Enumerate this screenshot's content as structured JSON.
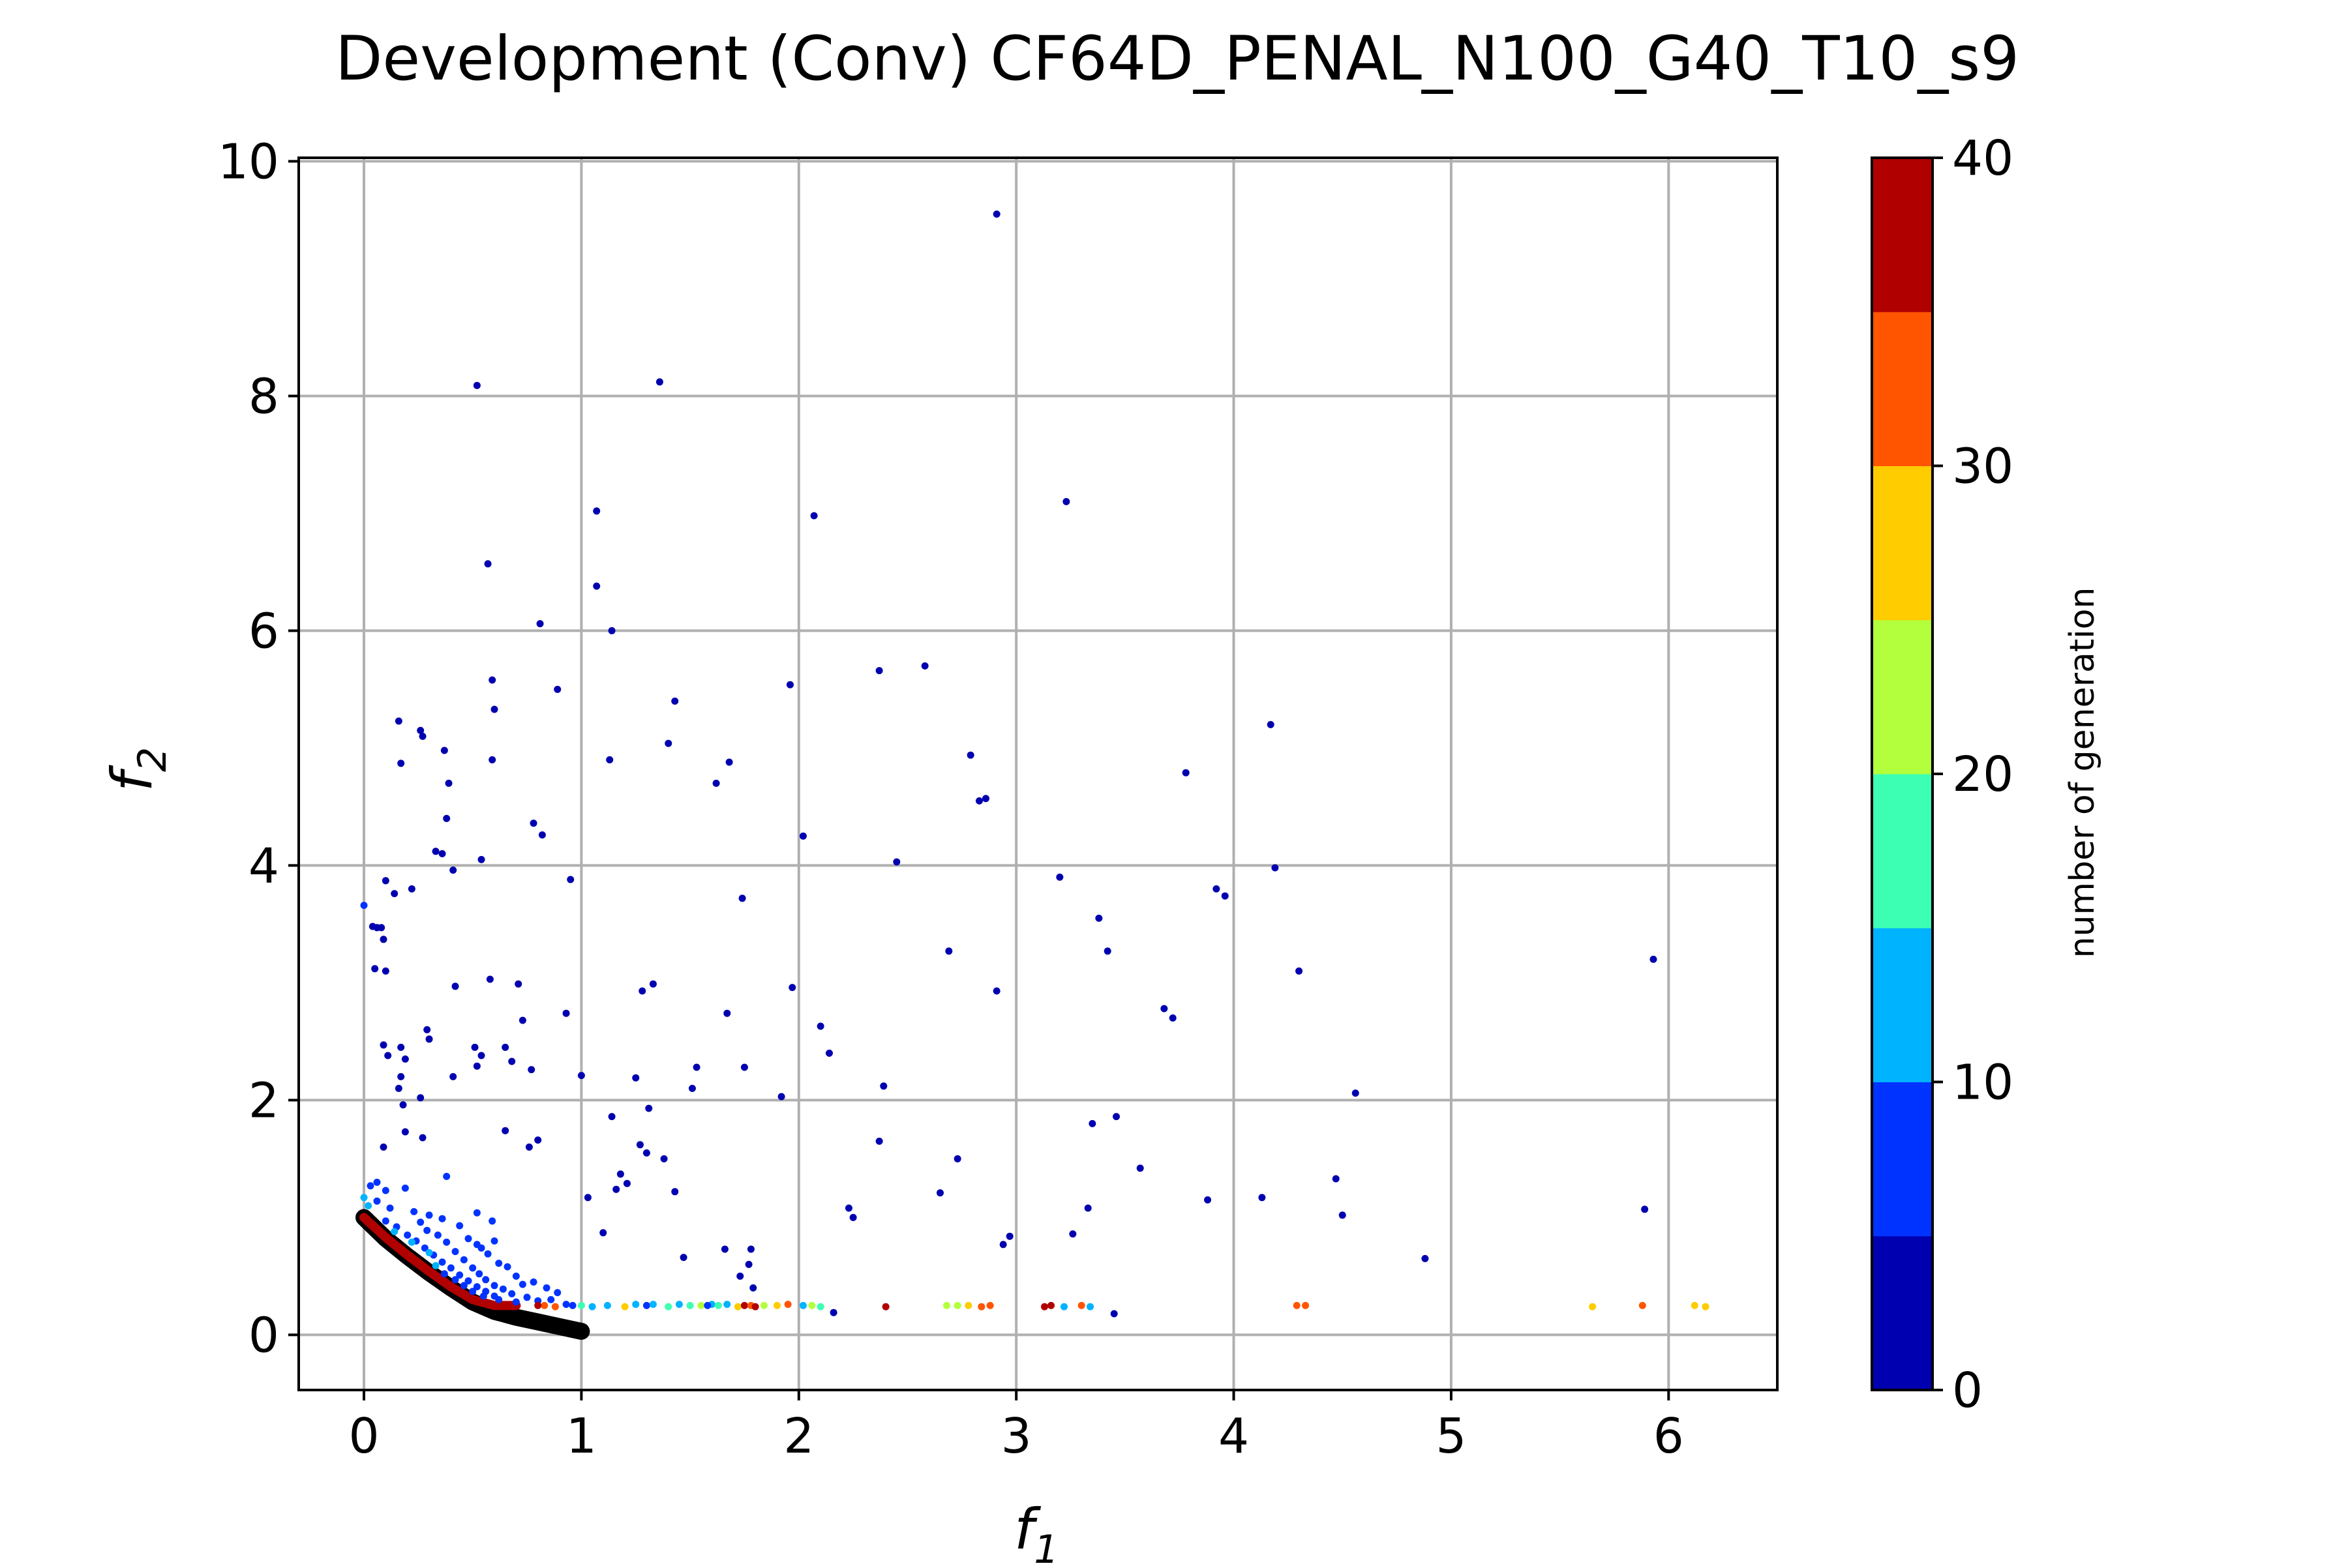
{
  "chart_data": {
    "type": "scatter",
    "title": "Development (Conv) CF64D_PENAL_N100_G40_T10_s9",
    "xlabel": {
      "base": "f",
      "sub": "1"
    },
    "ylabel": {
      "base": "f",
      "sub": "2"
    },
    "xlim": [
      -0.3,
      6.5
    ],
    "ylim": [
      -0.47,
      10.03
    ],
    "xticks": [
      0,
      1,
      2,
      3,
      4,
      5,
      6
    ],
    "yticks": [
      0,
      2,
      4,
      6,
      8,
      10
    ],
    "xtick_labels": [
      "0",
      "1",
      "2",
      "3",
      "4",
      "5",
      "6"
    ],
    "ytick_labels": [
      "0",
      "2",
      "4",
      "6",
      "8",
      "10"
    ],
    "grid": true,
    "colorbar": {
      "label": "number of generation",
      "range": [
        0,
        40
      ],
      "ticks": [
        0,
        10,
        20,
        30,
        40
      ],
      "tick_labels": [
        "0",
        "10",
        "20",
        "30",
        "40"
      ],
      "colors": [
        "#0000b0",
        "#0033ff",
        "#00b3ff",
        "#3dffb3",
        "#b3ff3d",
        "#ffcc00",
        "#ff5500",
        "#b00000"
      ]
    },
    "pareto_front": {
      "color": "#000000",
      "points": [
        [
          0.0,
          1.0
        ],
        [
          0.1,
          0.82
        ],
        [
          0.2,
          0.67
        ],
        [
          0.3,
          0.53
        ],
        [
          0.4,
          0.4
        ],
        [
          0.5,
          0.28
        ],
        [
          0.6,
          0.2
        ],
        [
          0.7,
          0.15
        ],
        [
          0.8,
          0.11
        ],
        [
          0.9,
          0.07
        ],
        [
          1.0,
          0.03
        ]
      ]
    },
    "final_front": {
      "generation": 40,
      "points": [
        [
          0.0,
          1.0
        ],
        [
          0.1,
          0.83
        ],
        [
          0.2,
          0.68
        ],
        [
          0.3,
          0.54
        ],
        [
          0.4,
          0.41
        ],
        [
          0.5,
          0.3
        ],
        [
          0.6,
          0.25
        ],
        [
          0.7,
          0.25
        ]
      ]
    },
    "points": [
      [
        2.91,
        9.55,
        0
      ],
      [
        0.52,
        8.09,
        0
      ],
      [
        1.36,
        8.12,
        0
      ],
      [
        1.07,
        7.02,
        0
      ],
      [
        2.07,
        6.98,
        0
      ],
      [
        3.23,
        7.1,
        0
      ],
      [
        0.57,
        6.57,
        0
      ],
      [
        1.07,
        6.38,
        0
      ],
      [
        0.81,
        6.06,
        0
      ],
      [
        1.14,
        6.0,
        0
      ],
      [
        2.37,
        5.66,
        0
      ],
      [
        2.58,
        5.7,
        0
      ],
      [
        0.59,
        5.58,
        0
      ],
      [
        0.6,
        5.33,
        0
      ],
      [
        0.89,
        5.5,
        0
      ],
      [
        1.43,
        5.4,
        0
      ],
      [
        1.96,
        5.54,
        0
      ],
      [
        4.17,
        5.2,
        0
      ],
      [
        0.16,
        5.23,
        0
      ],
      [
        0.26,
        5.15,
        0
      ],
      [
        0.27,
        5.1,
        0
      ],
      [
        0.37,
        4.98,
        0
      ],
      [
        0.59,
        4.9,
        0
      ],
      [
        1.13,
        4.9,
        0
      ],
      [
        1.4,
        5.04,
        0
      ],
      [
        1.68,
        4.88,
        0
      ],
      [
        2.79,
        4.94,
        0
      ],
      [
        0.17,
        4.87,
        0
      ],
      [
        0.39,
        4.7,
        0
      ],
      [
        1.62,
        4.7,
        0
      ],
      [
        2.83,
        4.55,
        0
      ],
      [
        2.86,
        4.57,
        0
      ],
      [
        3.78,
        4.79,
        0
      ],
      [
        0.38,
        4.4,
        0
      ],
      [
        0.78,
        4.36,
        0
      ],
      [
        0.82,
        4.26,
        0
      ],
      [
        2.02,
        4.25,
        0
      ],
      [
        0.33,
        4.12,
        0
      ],
      [
        0.36,
        4.1,
        0
      ],
      [
        0.54,
        4.05,
        0
      ],
      [
        2.45,
        4.03,
        0
      ],
      [
        4.19,
        3.98,
        0
      ],
      [
        0.41,
        3.96,
        0
      ],
      [
        0.95,
        3.88,
        0
      ],
      [
        3.2,
        3.9,
        0
      ],
      [
        3.92,
        3.8,
        0
      ],
      [
        3.96,
        3.74,
        0
      ],
      [
        1.74,
        3.72,
        0
      ],
      [
        3.38,
        3.55,
        0
      ],
      [
        3.42,
        3.27,
        0
      ],
      [
        2.69,
        3.27,
        0
      ],
      [
        4.3,
        3.1,
        0
      ],
      [
        5.93,
        3.2,
        0
      ],
      [
        0.58,
        3.03,
        0
      ],
      [
        0.71,
        2.99,
        0
      ],
      [
        0.42,
        2.97,
        0
      ],
      [
        1.28,
        2.93,
        0
      ],
      [
        1.33,
        2.99,
        0
      ],
      [
        1.97,
        2.96,
        0
      ],
      [
        2.91,
        2.93,
        0
      ],
      [
        3.68,
        2.78,
        0
      ],
      [
        3.72,
        2.7,
        0
      ],
      [
        1.67,
        2.74,
        0
      ],
      [
        0.93,
        2.74,
        0
      ],
      [
        0.73,
        2.68,
        0
      ],
      [
        2.1,
        2.63,
        0
      ],
      [
        0.29,
        2.6,
        0
      ],
      [
        0.3,
        2.52,
        0
      ],
      [
        0.51,
        2.45,
        0
      ],
      [
        0.65,
        2.45,
        0
      ],
      [
        0.54,
        2.38,
        0
      ],
      [
        0.68,
        2.33,
        0
      ],
      [
        0.52,
        2.29,
        0
      ],
      [
        2.14,
        2.4,
        0
      ],
      [
        1.53,
        2.28,
        0
      ],
      [
        1.75,
        2.28,
        0
      ],
      [
        0.77,
        2.26,
        0
      ],
      [
        0.41,
        2.2,
        0
      ],
      [
        1.0,
        2.21,
        0
      ],
      [
        1.25,
        2.19,
        0
      ],
      [
        2.39,
        2.12,
        0
      ],
      [
        1.51,
        2.1,
        0
      ],
      [
        4.56,
        2.06,
        0
      ],
      [
        1.92,
        2.03,
        0
      ],
      [
        1.14,
        1.86,
        0
      ],
      [
        1.31,
        1.93,
        0
      ],
      [
        3.35,
        1.8,
        0
      ],
      [
        3.46,
        1.86,
        0
      ],
      [
        0.65,
        1.74,
        0
      ],
      [
        0.76,
        1.6,
        0
      ],
      [
        0.8,
        1.66,
        0
      ],
      [
        1.27,
        1.62,
        0
      ],
      [
        1.3,
        1.55,
        0
      ],
      [
        2.37,
        1.65,
        0
      ],
      [
        2.73,
        1.5,
        0
      ],
      [
        1.18,
        1.37,
        0
      ],
      [
        1.21,
        1.29,
        0
      ],
      [
        1.38,
        1.5,
        0
      ],
      [
        3.57,
        1.42,
        0
      ],
      [
        1.03,
        1.17,
        0
      ],
      [
        1.16,
        1.24,
        0
      ],
      [
        1.43,
        1.22,
        0
      ],
      [
        2.65,
        1.21,
        0
      ],
      [
        4.47,
        1.33,
        0
      ],
      [
        3.88,
        1.15,
        0
      ],
      [
        4.13,
        1.17,
        0
      ],
      [
        2.23,
        1.08,
        0
      ],
      [
        2.25,
        1.0,
        0
      ],
      [
        3.33,
        1.08,
        0
      ],
      [
        4.5,
        1.02,
        0
      ],
      [
        5.89,
        1.07,
        0
      ],
      [
        1.1,
        0.87,
        0
      ],
      [
        3.26,
        0.86,
        0
      ],
      [
        2.97,
        0.84,
        0
      ],
      [
        2.94,
        0.77,
        0
      ],
      [
        1.47,
        0.66,
        0
      ],
      [
        4.88,
        0.65,
        0
      ],
      [
        1.66,
        0.73,
        0
      ],
      [
        1.78,
        0.73,
        0
      ],
      [
        1.73,
        0.5,
        0
      ],
      [
        1.77,
        0.6,
        0
      ],
      [
        1.79,
        0.4,
        0
      ],
      [
        2.16,
        0.19,
        0
      ],
      [
        3.45,
        0.18,
        0
      ],
      [
        0.0,
        3.66,
        7
      ],
      [
        0.06,
        3.47,
        0
      ],
      [
        0.08,
        3.47,
        0
      ],
      [
        0.09,
        3.37,
        0
      ],
      [
        0.04,
        3.48,
        0
      ],
      [
        0.05,
        3.12,
        0
      ],
      [
        0.1,
        3.1,
        0
      ],
      [
        0.1,
        3.87,
        0
      ],
      [
        0.14,
        3.76,
        0
      ],
      [
        0.22,
        3.8,
        0
      ],
      [
        0.09,
        2.47,
        0
      ],
      [
        0.11,
        2.38,
        0
      ],
      [
        0.17,
        2.45,
        0
      ],
      [
        0.19,
        2.35,
        0
      ],
      [
        0.17,
        2.2,
        0
      ],
      [
        0.16,
        2.1,
        0
      ],
      [
        0.26,
        2.02,
        0
      ],
      [
        0.18,
        1.96,
        0
      ],
      [
        0.27,
        1.68,
        0
      ],
      [
        0.09,
        1.6,
        0
      ],
      [
        0.19,
        1.73,
        0
      ],
      [
        0.03,
        1.27,
        7
      ],
      [
        0.06,
        1.3,
        7
      ],
      [
        0.1,
        1.23,
        7
      ],
      [
        0.19,
        1.25,
        7
      ],
      [
        0.38,
        1.35,
        7
      ],
      [
        0.0,
        1.17,
        12
      ],
      [
        0.02,
        1.1,
        12
      ],
      [
        0.06,
        1.14,
        7
      ],
      [
        0.12,
        1.08,
        7
      ],
      [
        0.23,
        1.05,
        7
      ],
      [
        0.3,
        1.02,
        7
      ],
      [
        0.36,
        0.99,
        7
      ],
      [
        0.52,
        1.04,
        7
      ],
      [
        0.59,
        0.97,
        7
      ],
      [
        0.6,
        0.8,
        7
      ],
      [
        0.44,
        0.93,
        7
      ],
      [
        0.48,
        0.82,
        7
      ],
      [
        0.52,
        0.77,
        7
      ],
      [
        0.54,
        0.74,
        7
      ],
      [
        0.57,
        0.69,
        7
      ],
      [
        0.62,
        0.61,
        7
      ],
      [
        0.66,
        0.58,
        7
      ],
      [
        0.7,
        0.5,
        7
      ],
      [
        0.73,
        0.43,
        7
      ],
      [
        0.26,
        0.96,
        7
      ],
      [
        0.29,
        0.89,
        7
      ],
      [
        0.34,
        0.85,
        7
      ],
      [
        0.38,
        0.79,
        7
      ],
      [
        0.42,
        0.71,
        7
      ],
      [
        0.46,
        0.64,
        7
      ],
      [
        0.5,
        0.57,
        7
      ],
      [
        0.53,
        0.52,
        7
      ],
      [
        0.56,
        0.47,
        7
      ],
      [
        0.6,
        0.42,
        7
      ],
      [
        0.64,
        0.39,
        7
      ],
      [
        0.68,
        0.35,
        7
      ],
      [
        0.75,
        0.32,
        7
      ],
      [
        0.8,
        0.29,
        7
      ],
      [
        0.86,
        0.3,
        7
      ],
      [
        0.89,
        0.36,
        7
      ],
      [
        0.84,
        0.4,
        7
      ],
      [
        0.78,
        0.45,
        7
      ],
      [
        0.15,
        0.92,
        7
      ],
      [
        0.2,
        0.85,
        7
      ],
      [
        0.24,
        0.8,
        7
      ],
      [
        0.28,
        0.74,
        7
      ],
      [
        0.32,
        0.68,
        7
      ],
      [
        0.36,
        0.62,
        7
      ],
      [
        0.4,
        0.57,
        7
      ],
      [
        0.44,
        0.51,
        7
      ],
      [
        0.48,
        0.46,
        7
      ],
      [
        0.52,
        0.41,
        7
      ],
      [
        0.56,
        0.37,
        7
      ],
      [
        0.6,
        0.33,
        7
      ],
      [
        0.1,
        0.97,
        7
      ],
      [
        0.14,
        0.88,
        12
      ],
      [
        0.22,
        0.79,
        12
      ],
      [
        0.3,
        0.7,
        12
      ],
      [
        0.33,
        0.59,
        12
      ],
      [
        0.37,
        0.52,
        7
      ],
      [
        0.42,
        0.47,
        7
      ],
      [
        0.46,
        0.42,
        7
      ],
      [
        0.5,
        0.37,
        7
      ],
      [
        0.55,
        0.33,
        7
      ],
      [
        0.62,
        0.3,
        7
      ],
      [
        0.7,
        0.28,
        7
      ],
      [
        0.93,
        0.26,
        7
      ],
      [
        0.96,
        0.25,
        7
      ],
      [
        1.05,
        0.24,
        12
      ],
      [
        1.12,
        0.25,
        12
      ],
      [
        1.25,
        0.26,
        12
      ],
      [
        1.3,
        0.25,
        7
      ],
      [
        1.33,
        0.26,
        12
      ],
      [
        1.4,
        0.24,
        17
      ],
      [
        1.55,
        0.25,
        22
      ],
      [
        1.6,
        0.26,
        12
      ],
      [
        1.58,
        0.25,
        7
      ],
      [
        1.63,
        0.25,
        17
      ],
      [
        1.67,
        0.26,
        12
      ],
      [
        1.72,
        0.24,
        27
      ],
      [
        1.75,
        0.25,
        37
      ],
      [
        1.78,
        0.25,
        32
      ],
      [
        1.8,
        0.24,
        37
      ],
      [
        1.84,
        0.25,
        22
      ],
      [
        1.9,
        0.25,
        27
      ],
      [
        1.95,
        0.26,
        32
      ],
      [
        2.02,
        0.25,
        12
      ],
      [
        2.06,
        0.25,
        22
      ],
      [
        2.1,
        0.24,
        17
      ],
      [
        1.2,
        0.24,
        27
      ],
      [
        1.0,
        0.25,
        17
      ],
      [
        2.4,
        0.24,
        37
      ],
      [
        2.68,
        0.25,
        22
      ],
      [
        2.73,
        0.25,
        22
      ],
      [
        2.78,
        0.25,
        27
      ],
      [
        2.84,
        0.24,
        32
      ],
      [
        2.88,
        0.25,
        32
      ],
      [
        3.13,
        0.24,
        37
      ],
      [
        3.16,
        0.25,
        37
      ],
      [
        3.22,
        0.24,
        12
      ],
      [
        3.3,
        0.25,
        32
      ],
      [
        3.34,
        0.24,
        12
      ],
      [
        4.29,
        0.25,
        32
      ],
      [
        4.33,
        0.25,
        32
      ],
      [
        5.65,
        0.24,
        27
      ],
      [
        5.88,
        0.25,
        32
      ],
      [
        6.12,
        0.25,
        27
      ],
      [
        6.17,
        0.24,
        27
      ],
      [
        1.5,
        0.25,
        17
      ],
      [
        1.45,
        0.26,
        12
      ],
      [
        0.88,
        0.24,
        32
      ],
      [
        0.83,
        0.25,
        32
      ],
      [
        0.8,
        0.25,
        37
      ]
    ]
  }
}
